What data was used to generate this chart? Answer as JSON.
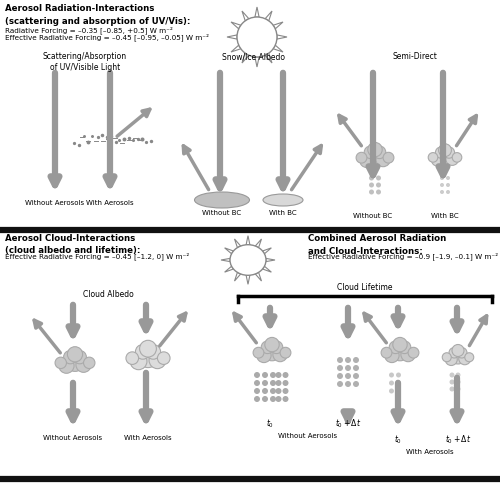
{
  "title_top": "Aerosol Radiation-Interactions\n(scattering and absorption of UV/Vis):",
  "subtitle_top_line1": "Radiative Forcing = –0.35 [–0.85, +0.5] W m⁻²",
  "subtitle_top_line2": "Effective Radiative Forcing = –0.45 [–0.95, –0.05] W m⁻²",
  "title_bottom_left": "Aerosol Cloud-Interactions\n(cloud albedo and lifetime):",
  "subtitle_bottom_left": "Effective Radiative Forcing = –0.45 [–1.2, 0] W m⁻²",
  "title_bottom_right": "Combined Aerosol Radiation\nand Cloud-Interactions:",
  "subtitle_bottom_right": "Effective Radiative Forcing = –0.9 [–1.9, –0.1] W m⁻²",
  "label_scattering": "Scattering/Absorption\nof UV/Visible Light",
  "label_snow_ice": "Snow/Ice Albedo",
  "label_semi_direct": "Semi-Direct",
  "label_cloud_albedo": "Cloud Albedo",
  "label_cloud_lifetime": "Cloud Lifetime",
  "label_without_aerosols_top": "Without Aerosols",
  "label_with_aerosols_top": "With Aerosols",
  "label_without_bc_snow": "Without BC",
  "label_with_bc_snow": "With BC",
  "label_without_bc_semi": "Without BC",
  "label_with_bc_semi": "With BC",
  "label_without_aerosols_albedo": "Without Aerosols",
  "label_with_aerosols_albedo": "With Aerosols",
  "label_without_aerosols_lifetime": "Without Aerosols",
  "label_with_aerosols_lifetime": "With Aerosols",
  "arrow_color": "#999999",
  "cloud_color": "#d0d0d0",
  "cloud_edge_color": "#aaaaaa",
  "background_color": "#ffffff",
  "divider_color": "#111111"
}
